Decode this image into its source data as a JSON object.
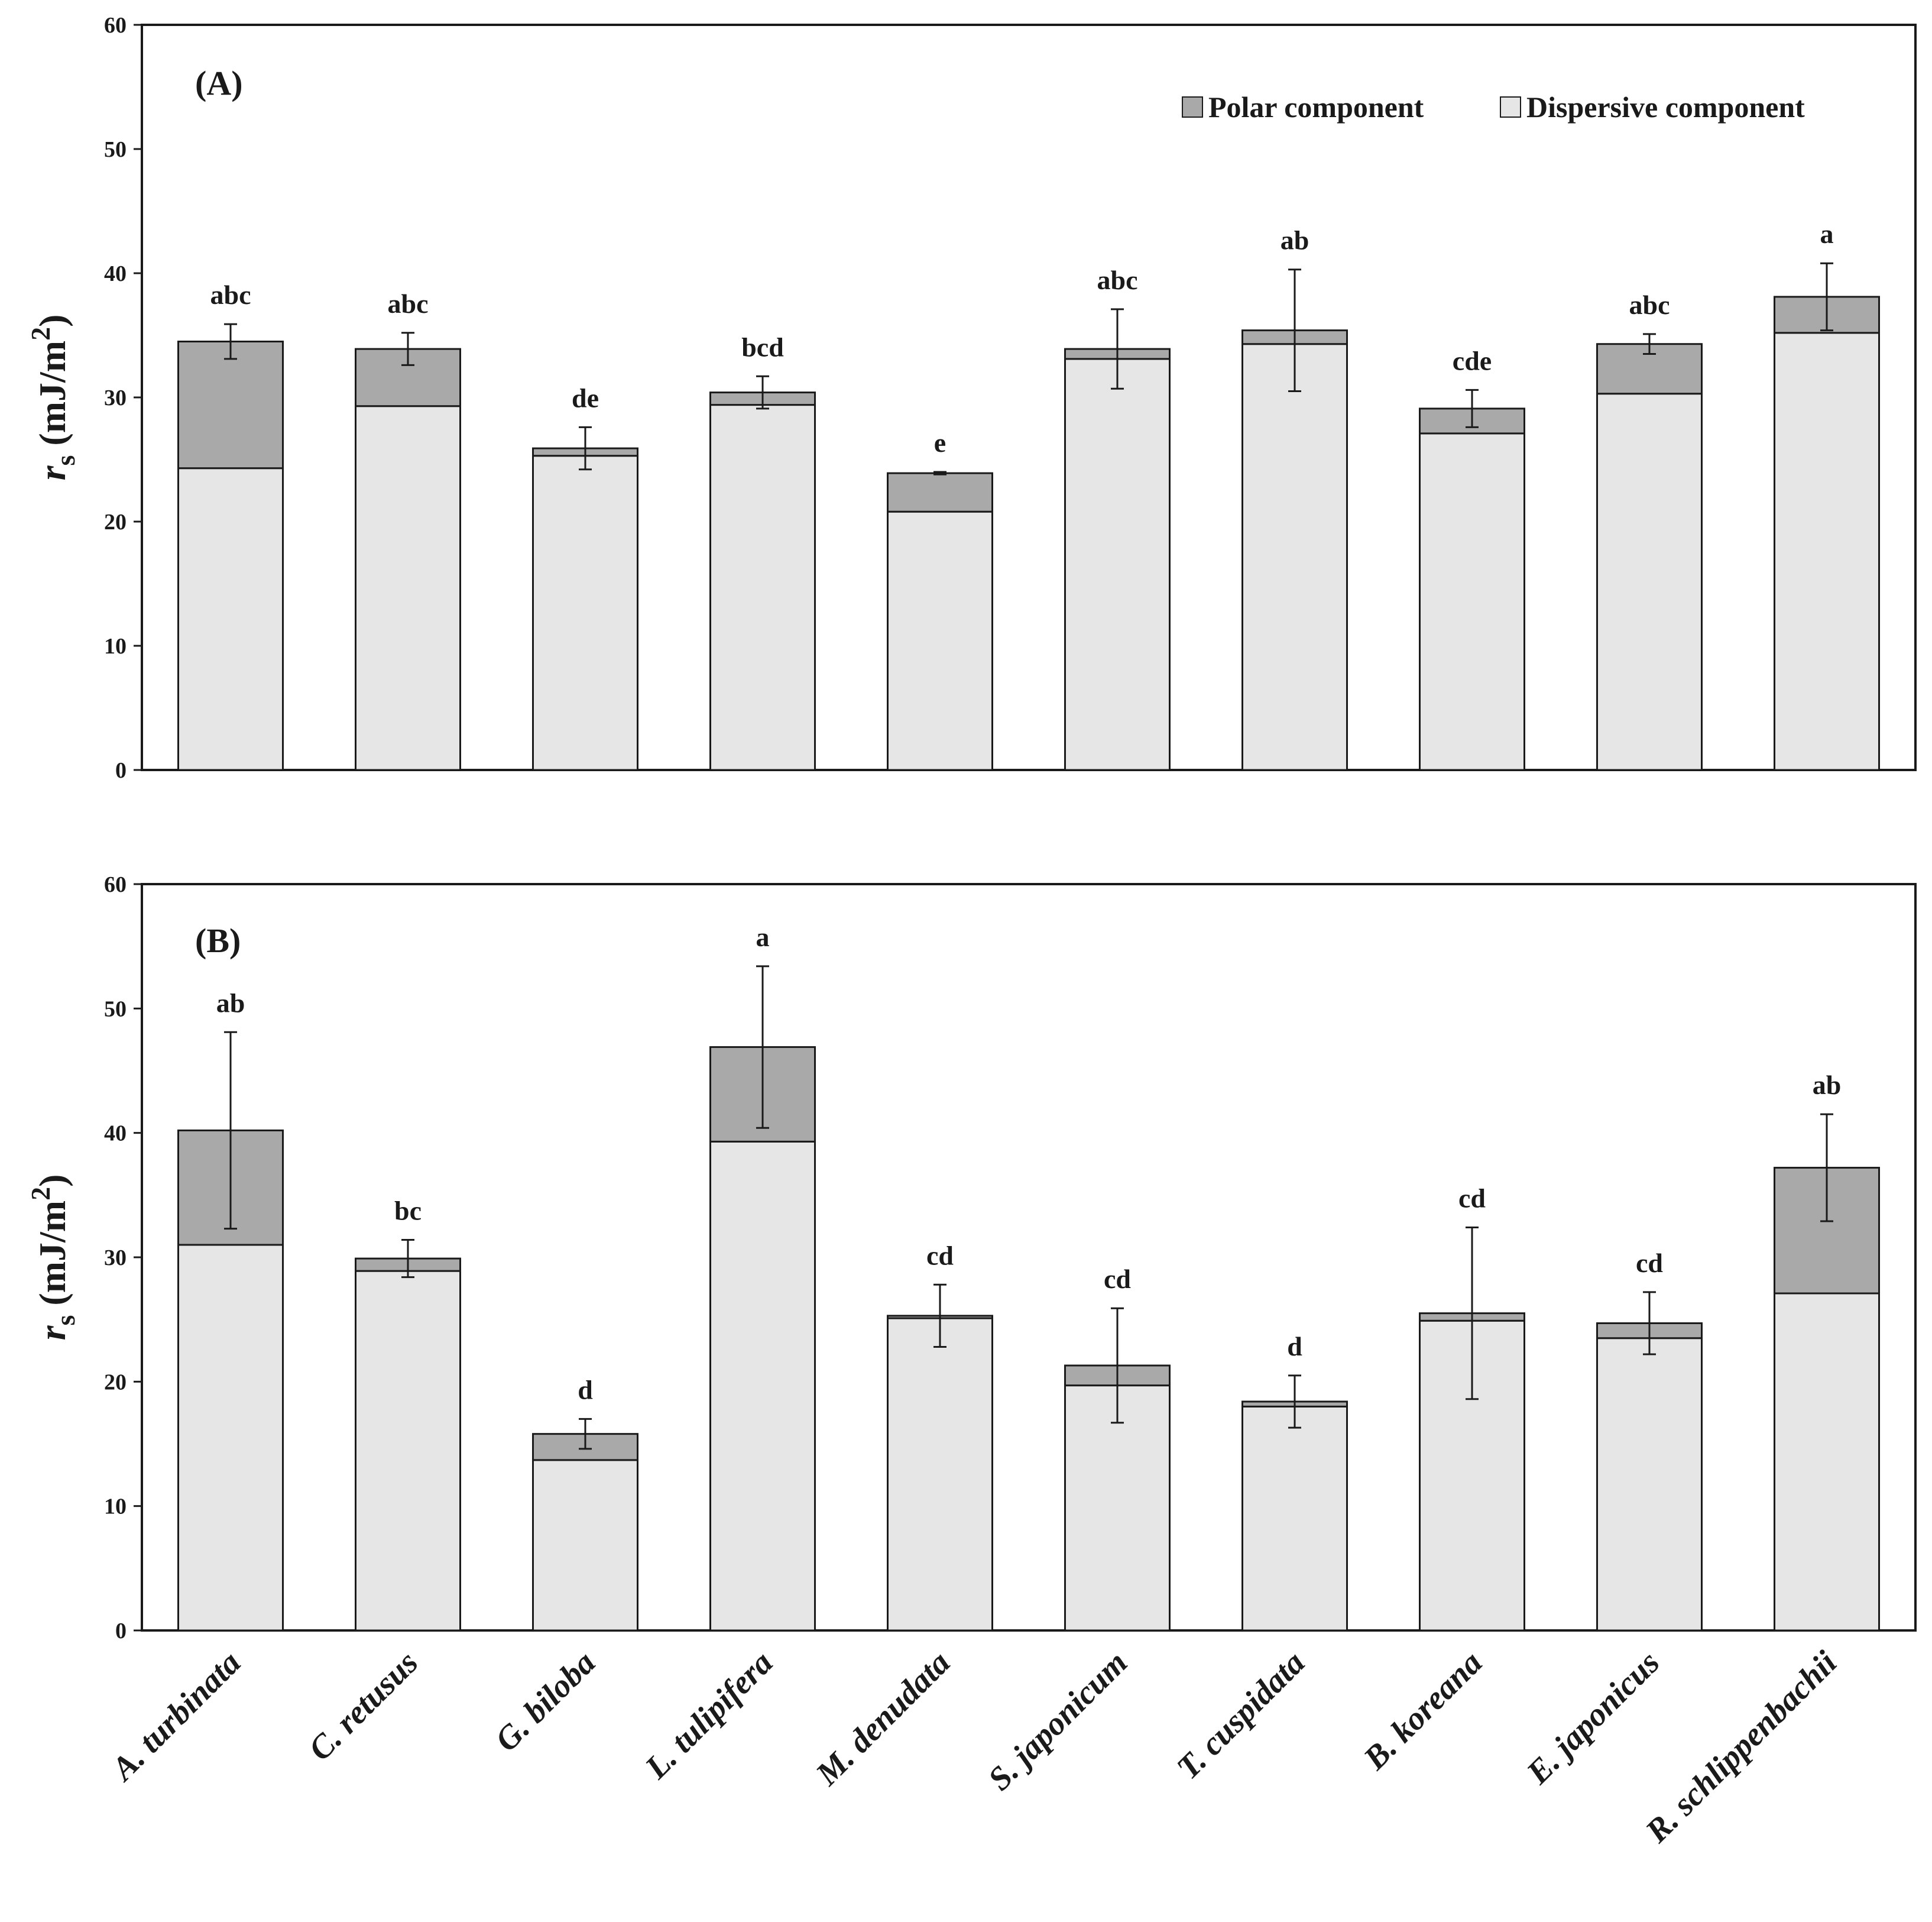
{
  "colors": {
    "polar": "#a9a9a9",
    "dispersive": "#e6e6e6",
    "stroke": "#1a1a1a"
  },
  "legend": {
    "polar": "Polar component",
    "dispersive": "Dispersive component"
  },
  "chart_data": [
    {
      "type": "bar",
      "stacked": true,
      "panel_label": "(A)",
      "ylabel_symbol": "r",
      "ylabel_subscript": "s",
      "ylabel_units": " (mJ/m",
      "ylabel_sup": "2",
      "ylabel_close": ")",
      "ylim": [
        0,
        60
      ],
      "yticks": [
        "0",
        "10",
        "20",
        "30",
        "40",
        "50",
        "60"
      ],
      "categories": [
        "A. turbinata",
        "C. retusus",
        "G. biloba",
        "L. tulipifera",
        "M. denudata",
        "S. japonicum",
        "T. cuspidata",
        "B. koreana",
        "E. japonicus",
        "R. schlippenbachii"
      ],
      "series": [
        {
          "name": "Dispersive component",
          "values": [
            24.3,
            29.3,
            25.3,
            29.4,
            20.8,
            33.1,
            34.3,
            27.1,
            30.3,
            35.2
          ]
        },
        {
          "name": "Polar component",
          "values": [
            10.2,
            4.6,
            0.6,
            1.0,
            3.1,
            0.8,
            1.1,
            2.0,
            4.0,
            2.9
          ]
        }
      ],
      "error": [
        1.4,
        1.3,
        1.7,
        1.3,
        0.1,
        3.2,
        4.9,
        1.5,
        0.8,
        2.7
      ],
      "letters": [
        "abc",
        "abc",
        "de",
        "bcd",
        "e",
        "abc",
        "ab",
        "cde",
        "abc",
        "a"
      ]
    },
    {
      "type": "bar",
      "stacked": true,
      "panel_label": "(B)",
      "ylabel_symbol": "r",
      "ylabel_subscript": "s",
      "ylabel_units": " (mJ/m",
      "ylabel_sup": "2",
      "ylabel_close": ")",
      "ylim": [
        0,
        60
      ],
      "yticks": [
        "0",
        "10",
        "20",
        "30",
        "40",
        "50",
        "60"
      ],
      "categories": [
        "A. turbinata",
        "C. retusus",
        "G. biloba",
        "L. tulipifera",
        "M. denudata",
        "S. japonicum",
        "T. cuspidata",
        "B. koreana",
        "E. japonicus",
        "R. schlippenbachii"
      ],
      "series": [
        {
          "name": "Dispersive component",
          "values": [
            31.0,
            28.9,
            13.7,
            39.3,
            25.1,
            19.7,
            18.0,
            24.9,
            23.5,
            27.1
          ]
        },
        {
          "name": "Polar component",
          "values": [
            9.2,
            1.0,
            2.1,
            7.6,
            0.2,
            1.6,
            0.4,
            0.6,
            1.2,
            10.1
          ]
        }
      ],
      "error": [
        7.9,
        1.5,
        1.2,
        6.5,
        2.5,
        4.6,
        2.1,
        6.9,
        2.5,
        4.3
      ],
      "letters": [
        "ab",
        "bc",
        "d",
        "a",
        "cd",
        "cd",
        "d",
        "cd",
        "cd",
        "ab"
      ]
    }
  ]
}
